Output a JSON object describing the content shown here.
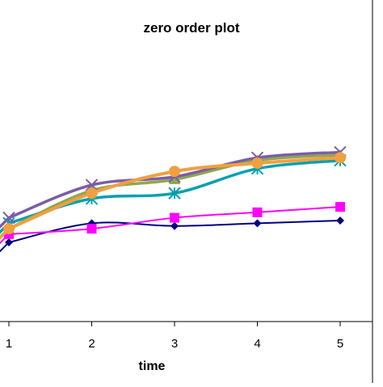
{
  "chart_data": {
    "type": "line",
    "title": "zero order plot",
    "xlabel": "time",
    "ylabel": "",
    "x": [
      1,
      2,
      3,
      4,
      5
    ],
    "x_tick_labels": [
      "1",
      "2",
      "3",
      "4",
      "5"
    ],
    "ylim": [
      0,
      1
    ],
    "grid": false,
    "legend": "none",
    "series": [
      {
        "color": "#000080",
        "marker": "diamond",
        "values": [
          0.29,
          0.36,
          0.35,
          0.36,
          0.37
        ]
      },
      {
        "color": "#ff00ff",
        "marker": "square",
        "values": [
          0.32,
          0.34,
          0.38,
          0.4,
          0.42
        ]
      },
      {
        "color": "#00a0b0",
        "marker": "star",
        "values": [
          0.36,
          0.45,
          0.47,
          0.56,
          0.59
        ]
      },
      {
        "color": "#8fa84e",
        "marker": "triangle",
        "values": [
          0.34,
          0.48,
          0.52,
          0.59,
          0.61
        ]
      },
      {
        "color": "#7b5da8",
        "marker": "x",
        "values": [
          0.38,
          0.5,
          0.53,
          0.6,
          0.62
        ]
      },
      {
        "color": "#f0a040",
        "marker": "circle",
        "values": [
          0.34,
          0.47,
          0.55,
          0.58,
          0.6
        ]
      }
    ]
  }
}
